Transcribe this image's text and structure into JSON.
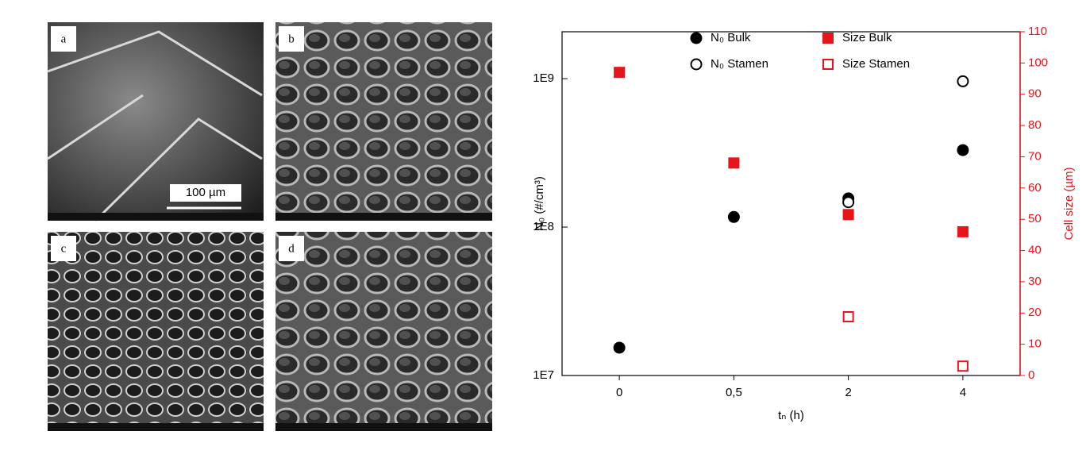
{
  "panels": [
    {
      "label": "a",
      "scale_bar": "100 µm"
    },
    {
      "label": "b"
    },
    {
      "label": "c"
    },
    {
      "label": "d"
    }
  ],
  "chart_data": {
    "type": "scatter",
    "categories": [
      "0",
      "0,5",
      "2",
      "4"
    ],
    "x_label": "tₙ (h)",
    "y_label": "N₀ (#/cm³)",
    "y2_label": "Cell size (µm)",
    "log_y": true,
    "ylim": [
      10000000,
      2070000000
    ],
    "yticks": [
      {
        "value": 10000000,
        "label": "1E7"
      },
      {
        "value": 100000000,
        "label": "1E8"
      },
      {
        "value": 1000000000,
        "label": "1E9"
      }
    ],
    "y2lim": [
      0,
      110
    ],
    "y2ticks": [
      0,
      10,
      20,
      30,
      40,
      50,
      60,
      70,
      80,
      90,
      100,
      110
    ],
    "y2_color": "#e8141b",
    "series": [
      {
        "name": "N₀ Bulk",
        "color": "#000000",
        "marker": "circle",
        "filled": true,
        "values": [
          15400000,
          117000000,
          156000000,
          330000000
        ]
      },
      {
        "name": "N₀ Stamen",
        "color": "#000000",
        "marker": "circle",
        "filled": false,
        "values": [
          null,
          null,
          147000000,
          960000000
        ]
      },
      {
        "name": "Size Bulk",
        "color": "#e8141b",
        "marker": "square",
        "filled": true,
        "axis": "y2",
        "values": [
          97,
          68,
          51.5,
          46
        ]
      },
      {
        "name": "Size Stamen",
        "color": "#e8141b",
        "marker": "square",
        "filled": false,
        "axis": "y2",
        "values": [
          null,
          null,
          18.8,
          3
        ]
      }
    ]
  }
}
